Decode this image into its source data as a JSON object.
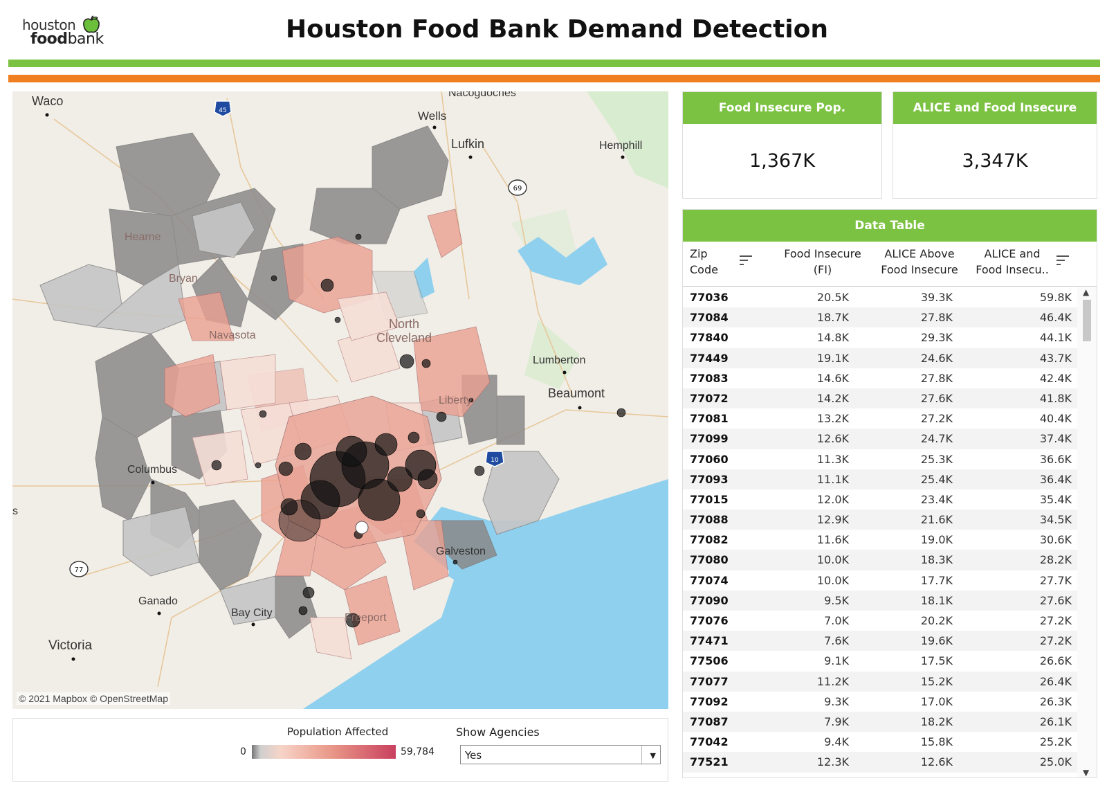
{
  "header": {
    "logo_line1": "houston",
    "logo_line2_bold": "food",
    "logo_line2_rest": "bank",
    "title": "Houston Food Bank Demand Detection",
    "colors": {
      "green": "#7cc242",
      "orange": "#f07f22"
    }
  },
  "map": {
    "labels": {
      "waco": "Waco",
      "wells": "Wells",
      "nacogdoches": "Nacogdoches",
      "lufkin": "Lufkin",
      "hemphill": "Hemphill",
      "hearne": "Hearne",
      "bryan": "Bryan",
      "navasota": "Navasota",
      "north": "North",
      "cleveland": "Cleveland",
      "lumberton": "Lumberton",
      "beaumont": "Beaumont",
      "liberty": "Liberty",
      "columbus": "Columbus",
      "galveston": "Galveston",
      "freeport": "Freeport",
      "ganado": "Ganado",
      "bay_city": "Bay City",
      "victoria": "Victoria",
      "s_edge": "s"
    },
    "shields": {
      "i45": "45",
      "us69": "69",
      "us77": "77",
      "i10": "10"
    },
    "copyright": "© 2021 Mapbox © OpenStreetMap"
  },
  "legend": {
    "title": "Population Affected",
    "min": "0",
    "max": "59,784"
  },
  "agencies": {
    "label": "Show Agencies",
    "value": "Yes"
  },
  "kpis": [
    {
      "title": "Food Insecure Pop.",
      "value": "1,367K"
    },
    {
      "title": "ALICE and Food Insecure",
      "value": "3,347K"
    }
  ],
  "table": {
    "title": "Data Table",
    "columns": {
      "zip_line1": "Zip",
      "zip_line2": "Code",
      "fi_line1": "Food Insecure",
      "fi_line2": "(FI)",
      "alice_line1": "ALICE Above",
      "alice_line2": "Food Insecure",
      "total_line1": "ALICE and",
      "total_line2": "Food Insecu.."
    },
    "rows": [
      [
        "77036",
        "20.5K",
        "39.3K",
        "59.8K"
      ],
      [
        "77084",
        "18.7K",
        "27.8K",
        "46.4K"
      ],
      [
        "77840",
        "14.8K",
        "29.3K",
        "44.1K"
      ],
      [
        "77449",
        "19.1K",
        "24.6K",
        "43.7K"
      ],
      [
        "77083",
        "14.6K",
        "27.8K",
        "42.4K"
      ],
      [
        "77072",
        "14.2K",
        "27.6K",
        "41.8K"
      ],
      [
        "77081",
        "13.2K",
        "27.2K",
        "40.4K"
      ],
      [
        "77099",
        "12.6K",
        "24.7K",
        "37.4K"
      ],
      [
        "77060",
        "11.3K",
        "25.3K",
        "36.6K"
      ],
      [
        "77093",
        "11.1K",
        "25.4K",
        "36.4K"
      ],
      [
        "77015",
        "12.0K",
        "23.4K",
        "35.4K"
      ],
      [
        "77088",
        "12.9K",
        "21.6K",
        "34.5K"
      ],
      [
        "77082",
        "11.6K",
        "19.0K",
        "30.6K"
      ],
      [
        "77080",
        "10.0K",
        "18.3K",
        "28.2K"
      ],
      [
        "77074",
        "10.0K",
        "17.7K",
        "27.7K"
      ],
      [
        "77090",
        "9.5K",
        "18.1K",
        "27.6K"
      ],
      [
        "77076",
        "7.0K",
        "20.2K",
        "27.2K"
      ],
      [
        "77471",
        "7.6K",
        "19.6K",
        "27.2K"
      ],
      [
        "77506",
        "9.1K",
        "17.5K",
        "26.6K"
      ],
      [
        "77077",
        "11.2K",
        "15.2K",
        "26.4K"
      ],
      [
        "77092",
        "9.3K",
        "17.0K",
        "26.3K"
      ],
      [
        "77087",
        "7.9K",
        "18.2K",
        "26.1K"
      ],
      [
        "77042",
        "9.4K",
        "15.8K",
        "25.2K"
      ],
      [
        "77521",
        "12.3K",
        "12.6K",
        "25.0K"
      ]
    ]
  }
}
